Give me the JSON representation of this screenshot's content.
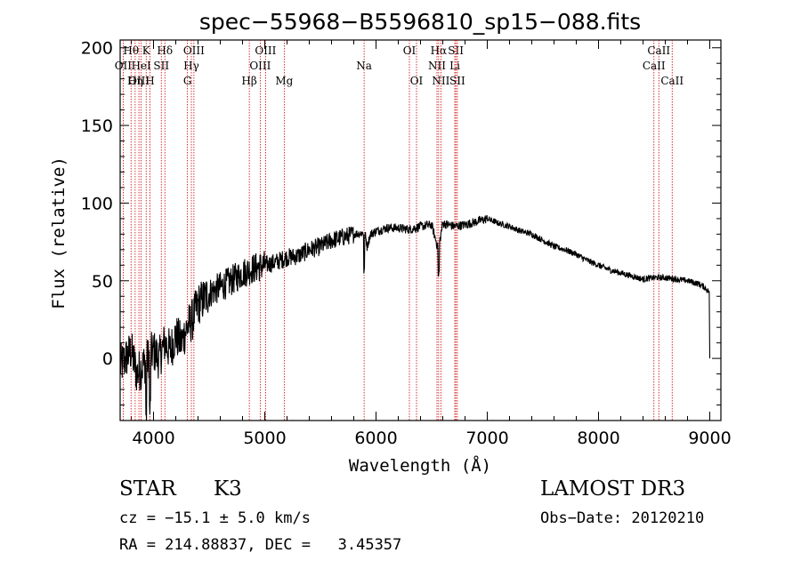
{
  "chart_data": {
    "type": "line",
    "title": "spec−55968−B5596810_sp15−088.fits",
    "xlabel": "Wavelength (Å)",
    "ylabel": "Flux (relative)",
    "xlim": [
      3700,
      9100
    ],
    "ylim": [
      -40,
      205
    ],
    "xticks": [
      4000,
      5000,
      6000,
      7000,
      8000,
      9000
    ],
    "yticks": [
      0,
      50,
      100,
      150,
      200
    ],
    "series": [
      {
        "name": "flux",
        "x": [
          3700,
          3750,
          3800,
          3850,
          3900,
          3950,
          4000,
          4050,
          4100,
          4150,
          4200,
          4250,
          4300,
          4350,
          4400,
          4450,
          4500,
          4600,
          4700,
          4800,
          4900,
          5000,
          5100,
          5200,
          5300,
          5400,
          5500,
          5600,
          5700,
          5800,
          5900,
          5920,
          5950,
          6000,
          6100,
          6200,
          6300,
          6400,
          6500,
          6560,
          6600,
          6700,
          6800,
          6900,
          7000,
          7100,
          7200,
          7300,
          7400,
          7500,
          7600,
          7700,
          7800,
          7900,
          8000,
          8100,
          8200,
          8300,
          8400,
          8500,
          8600,
          8700,
          8800,
          8900,
          8950,
          8990,
          9000
        ],
        "y": [
          -5,
          0,
          5,
          -10,
          -5,
          0,
          5,
          0,
          10,
          5,
          15,
          10,
          20,
          25,
          35,
          38,
          42,
          46,
          50,
          55,
          58,
          60,
          62,
          65,
          66,
          70,
          72,
          76,
          78,
          80,
          81,
          72,
          80,
          82,
          84,
          84,
          83,
          85,
          86,
          70,
          87,
          85,
          86,
          88,
          90,
          87,
          85,
          82,
          80,
          76,
          72,
          70,
          67,
          63,
          60,
          57,
          55,
          53,
          51,
          52,
          52,
          51,
          50,
          48,
          46,
          43,
          0
        ]
      }
    ],
    "spectral_lines": [
      {
        "label": "Hθ",
        "x": 3798,
        "row": 1
      },
      {
        "label": "OII",
        "x": 3727,
        "row": 2
      },
      {
        "label": "OIII",
        "x": 3869,
        "row": 3
      },
      {
        "label": "K",
        "x": 3934,
        "row": 1
      },
      {
        "label": "HeI",
        "x": 3889,
        "row": 2
      },
      {
        "label": "Hη",
        "x": 3835,
        "row": 3
      },
      {
        "label": "Hδ",
        "x": 4102,
        "row": 1
      },
      {
        "label": "SII",
        "x": 4070,
        "row": 2
      },
      {
        "label": "H",
        "x": 3968,
        "row": 3
      },
      {
        "label": "OIII",
        "x": 4363,
        "row": 1
      },
      {
        "label": "Hγ",
        "x": 4340,
        "row": 2
      },
      {
        "label": "G",
        "x": 4305,
        "row": 3
      },
      {
        "label": "OIII",
        "x": 5007,
        "row": 1
      },
      {
        "label": "OIII",
        "x": 4959,
        "row": 2
      },
      {
        "label": "Hβ",
        "x": 4861,
        "row": 3
      },
      {
        "label": "Mg",
        "x": 5175,
        "row": 3
      },
      {
        "label": "Na",
        "x": 5893,
        "row": 2
      },
      {
        "label": "OI",
        "x": 6300,
        "row": 1
      },
      {
        "label": "OI",
        "x": 6364,
        "row": 3
      },
      {
        "label": "Hα",
        "x": 6563,
        "row": 1
      },
      {
        "label": "NII",
        "x": 6548,
        "row": 2
      },
      {
        "label": "NII",
        "x": 6583,
        "row": 3
      },
      {
        "label": "SII",
        "x": 6717,
        "row": 1
      },
      {
        "label": "Li",
        "x": 6708,
        "row": 2
      },
      {
        "label": "SII",
        "x": 6731,
        "row": 3
      },
      {
        "label": "CaII",
        "x": 8542,
        "row": 1
      },
      {
        "label": "CaII",
        "x": 8498,
        "row": 2
      },
      {
        "label": "CaII",
        "x": 8662,
        "row": 3
      }
    ]
  },
  "info": {
    "object_class": "STAR",
    "subclass": "K3",
    "survey": "LAMOST DR3",
    "velocity": "cz = −15.1 ± 5.0 km/s",
    "obs_date": "Obs−Date: 20120210",
    "coords": "RA = 214.88837, DEC =   3.45357"
  },
  "colors": {
    "line_marker": "#cc0000",
    "spectrum": "#000000",
    "axes": "#000000"
  }
}
